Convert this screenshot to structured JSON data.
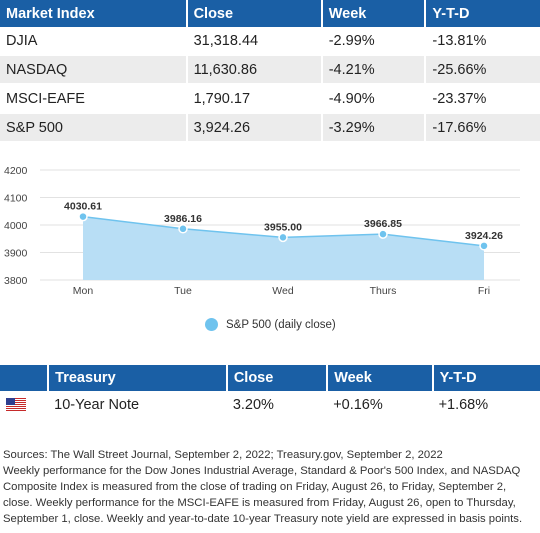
{
  "market_table": {
    "headers": [
      "Market Index",
      "Close",
      "Week",
      "Y-T-D"
    ],
    "rows": [
      [
        "DJIA",
        "31,318.44",
        "-2.99%",
        "-13.81%"
      ],
      [
        "NASDAQ",
        "11,630.86",
        "-4.21%",
        "-25.66%"
      ],
      [
        "MSCI-EAFE",
        "1,790.17",
        "-4.90%",
        "-23.37%"
      ],
      [
        "S&P 500",
        "3,924.26",
        "-3.29%",
        "-17.66%"
      ]
    ]
  },
  "chart_data": {
    "type": "area",
    "categories": [
      "Mon",
      "Tue",
      "Wed",
      "Thurs",
      "Fri"
    ],
    "series": [
      {
        "name": "S&P 500 (daily close)",
        "values": [
          4030.61,
          3986.16,
          3955.0,
          3966.85,
          3924.26
        ]
      }
    ],
    "data_labels": [
      "4030.61",
      "3986.16",
      "3955.00",
      "3966.85",
      "3924.26"
    ],
    "y_ticks": [
      3800,
      3900,
      4000,
      4100,
      4200
    ],
    "ylim": [
      3800,
      4200
    ],
    "grid": true,
    "legend": "bottom",
    "color": "#6fc3ee",
    "fill_color": "#b8def5"
  },
  "treasury_table": {
    "headers": [
      "",
      "Treasury",
      "Close",
      "Week",
      "Y-T-D"
    ],
    "row": {
      "flag_icon": "us-flag-icon",
      "name": "10-Year Note",
      "close": "3.20%",
      "week": "+0.16%",
      "ytd": "+1.68%"
    }
  },
  "notes": [
    "Sources: The Wall Street Journal, September 2, 2022; Treasury.gov, September 2, 2022",
    "Weekly performance for the Dow Jones Industrial Average, Standard & Poor's 500 Index, and NASDAQ Composite Index is measured from the close of trading on Friday, August 26, to Friday, September 2, close. Weekly performance for the MSCI-EAFE is measured from Friday, August 26, open to Thursday, September 1, close. Weekly and year-to-date 10-year Treasury note yield are expressed in basis points."
  ],
  "colors": {
    "header_bg": "#1a5fa5",
    "row_alt": "#ececec"
  }
}
